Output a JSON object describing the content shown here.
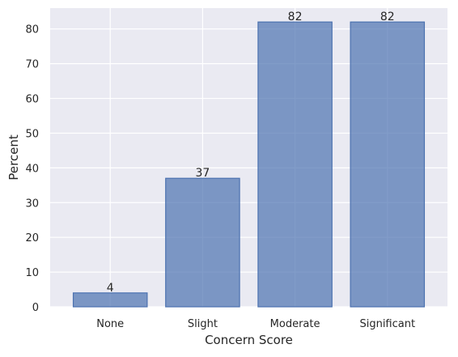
{
  "chart_data": {
    "type": "bar",
    "title": "",
    "xlabel": "Concern Score",
    "ylabel": "Percent",
    "categories": [
      "None",
      "Slight",
      "Moderate",
      "Significant"
    ],
    "values": [
      4,
      37,
      82,
      82
    ],
    "data_labels": [
      "4",
      "37",
      "82",
      "82"
    ],
    "ylim": [
      0,
      86
    ],
    "yticks": [
      0,
      10,
      20,
      30,
      40,
      50,
      60,
      70,
      80
    ],
    "grid": true,
    "legend": "none",
    "colors": {
      "background": "#EAEAF2",
      "grid": "#FFFFFF",
      "bar_fill": "#4C72B0",
      "bar_edge": "#4C72B0",
      "text": "#262626"
    }
  }
}
